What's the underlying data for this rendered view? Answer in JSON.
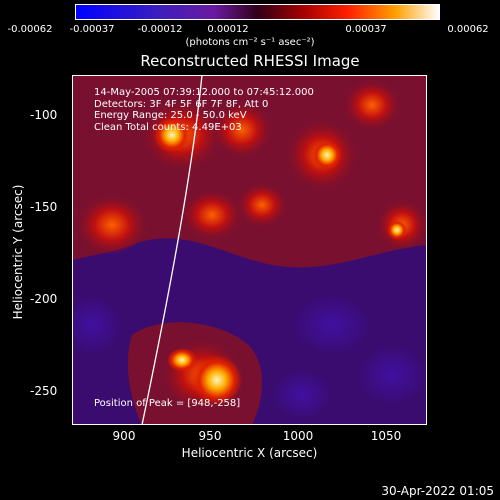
{
  "colorbar": {
    "ticks": [
      "-0.00062",
      "-0.00037",
      "-0.00012",
      "0.00012",
      "0.00037",
      "0.00062"
    ],
    "units": "(photons cm⁻² s⁻¹ asec⁻²)"
  },
  "title": "Reconstructed RHESSI Image",
  "info": {
    "line1": "14-May-2005 07:39:12.000 to 07:45:12.000",
    "line2": "Detectors: 3F 4F 5F 6F 7F 8F, Att 0",
    "line3": "Energy Range: 25.0 - 50.0 keV",
    "line4": "Clean    Total counts: 4.49E+03",
    "peak": "Position of Peak = [948,-258]"
  },
  "axes": {
    "xlabel": "Heliocentric X (arcsec)",
    "ylabel": "Heliocentric Y (arcsec)",
    "xticks": [
      "900",
      "950",
      "1000",
      "1050"
    ],
    "yticks": [
      "-100",
      "-150",
      "-200",
      "-250"
    ]
  },
  "timestamp": "30-Apr-2022 01:05",
  "colors": {
    "background": "#000000",
    "low": "#2a0a7a",
    "mid": "#8a1020",
    "high": "#ff6a00",
    "peak": "#fff6c0"
  }
}
